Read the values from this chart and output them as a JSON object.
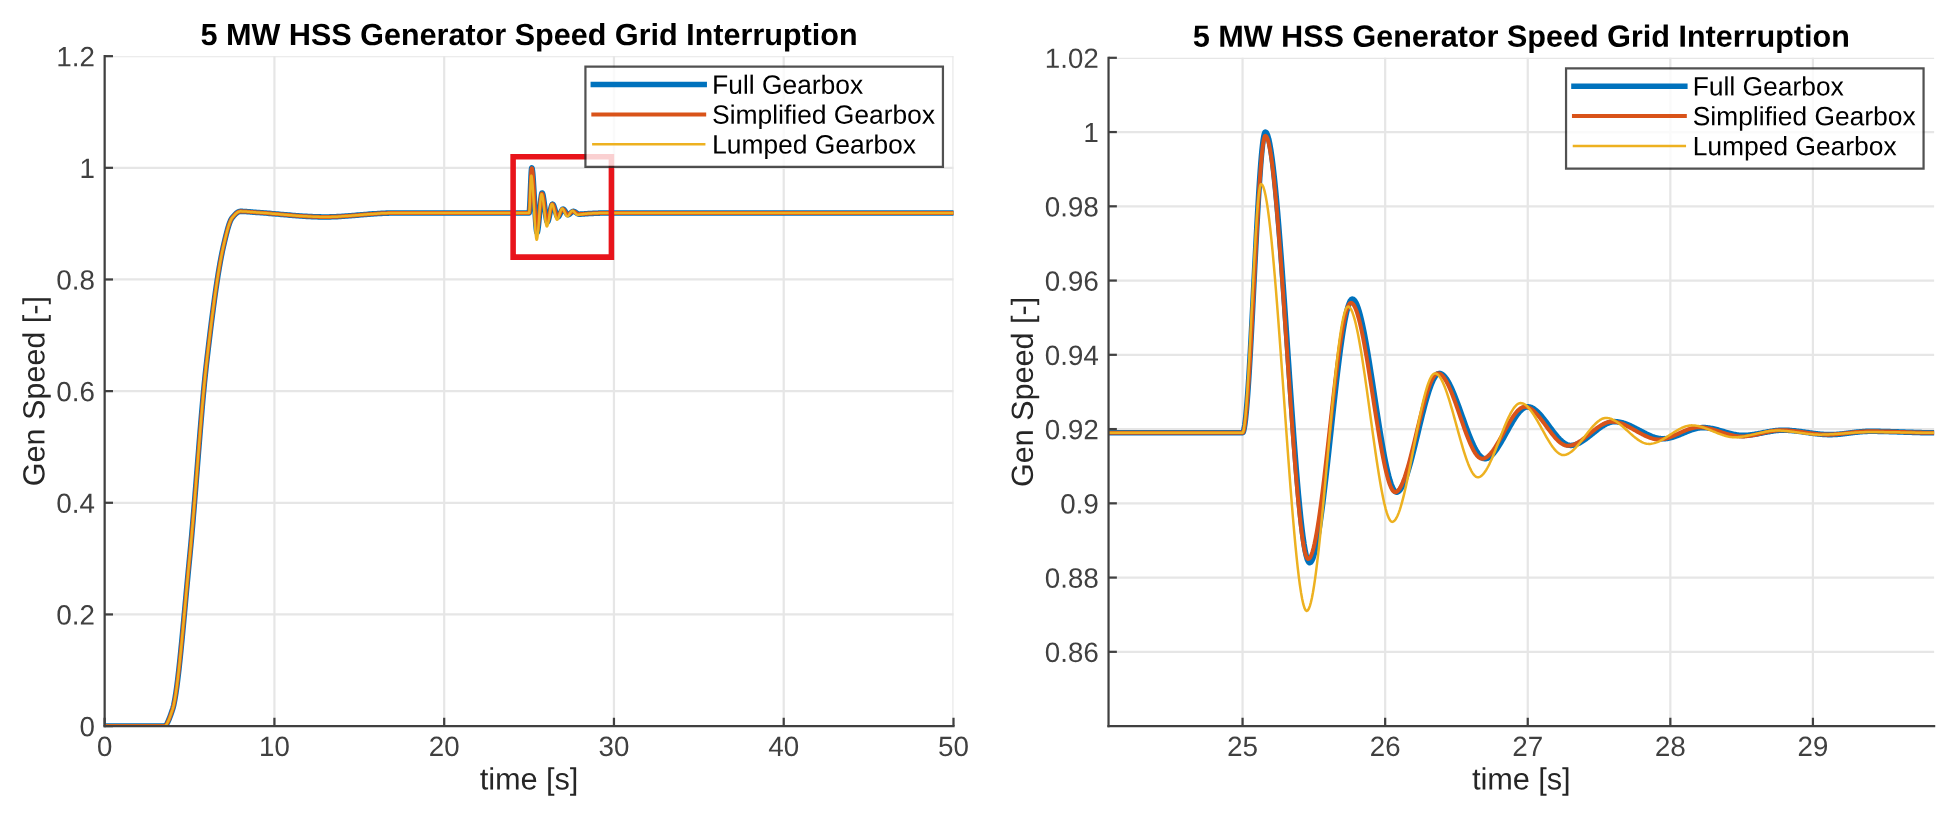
{
  "chart_data": [
    {
      "type": "line",
      "title": "5 MW HSS Generator Speed Grid Interruption",
      "xlabel": "time [s]",
      "ylabel": "Gen Speed [-]",
      "xlim": [
        0,
        50
      ],
      "ylim": [
        0,
        1.2
      ],
      "xticks": [
        0,
        10,
        20,
        30,
        40,
        50
      ],
      "yticks": [
        0,
        0.2,
        0.4,
        0.6,
        0.8,
        1,
        1.2
      ],
      "grid": true,
      "legend": "top right",
      "line_style": "solid",
      "series": [
        {
          "name": "Full Gearbox",
          "color": "#0072bd",
          "x": [
            0,
            3.5,
            4,
            5,
            6,
            7,
            7.5,
            8,
            9,
            13,
            17,
            25,
            25.16,
            25.47,
            25.77,
            26.08,
            26.38,
            26.7,
            27,
            27.3,
            27.61,
            27.95,
            28.5,
            29.4,
            30,
            50
          ],
          "values": [
            0,
            0,
            0.03,
            0.3,
            0.65,
            0.86,
            0.91,
            0.922,
            0.92,
            0.912,
            0.919,
            0.919,
            1.0,
            0.884,
            0.955,
            0.903,
            0.935,
            0.912,
            0.926,
            0.916,
            0.922,
            0.917,
            0.918,
            0.919,
            0.919,
            0.919
          ]
        },
        {
          "name": "Simplified Gearbox",
          "color": "#d95319",
          "x": [
            0,
            3.5,
            4,
            5,
            6,
            7,
            7.5,
            8,
            9,
            13,
            17,
            25,
            25.16,
            25.46,
            25.76,
            26.07,
            26.37,
            26.68,
            26.98,
            27.28,
            27.59,
            27.92,
            28.5,
            29.4,
            30,
            50
          ],
          "values": [
            0,
            0,
            0.03,
            0.3,
            0.65,
            0.86,
            0.91,
            0.922,
            0.92,
            0.912,
            0.919,
            0.919,
            0.999,
            0.885,
            0.954,
            0.903,
            0.935,
            0.912,
            0.926,
            0.916,
            0.922,
            0.917,
            0.918,
            0.919,
            0.919,
            0.919
          ]
        },
        {
          "name": "Lumped Gearbox",
          "color": "#edb120",
          "x": [
            0,
            3.5,
            4,
            5,
            6,
            7,
            7.5,
            8,
            9,
            13,
            17,
            25,
            25.13,
            25.45,
            25.74,
            26.05,
            26.35,
            26.65,
            26.95,
            27.25,
            27.55,
            27.85,
            28.45,
            29.4,
            30,
            50
          ],
          "values": [
            0,
            0,
            0.03,
            0.3,
            0.65,
            0.86,
            0.91,
            0.922,
            0.92,
            0.912,
            0.919,
            0.919,
            0.986,
            0.871,
            0.953,
            0.895,
            0.935,
            0.907,
            0.927,
            0.913,
            0.923,
            0.916,
            0.918,
            0.919,
            0.919,
            0.919
          ]
        }
      ]
    },
    {
      "type": "line",
      "title": "5 MW HSS Generator Speed Grid Interruption",
      "xlabel": "time [s]",
      "ylabel": "Gen Speed [-]",
      "xlim": [
        24.06,
        29.85
      ],
      "ylim": [
        0.84,
        1.02
      ],
      "xticks": [
        25,
        26,
        27,
        28,
        29
      ],
      "yticks": [
        0.86,
        0.88,
        0.9,
        0.92,
        0.94,
        0.96,
        0.98,
        1,
        1.02
      ],
      "grid": true,
      "legend": "top right",
      "line_style": "solid",
      "series": [
        {
          "name": "Full Gearbox",
          "color": "#0072bd",
          "x": [
            24.06,
            25,
            25.16,
            25.47,
            25.77,
            26.08,
            26.38,
            26.7,
            27.0,
            27.3,
            27.61,
            27.95,
            28.23,
            28.51,
            28.79,
            29.12,
            29.4,
            29.85
          ],
          "values": [
            0.919,
            0.919,
            1.0,
            0.884,
            0.955,
            0.903,
            0.935,
            0.912,
            0.926,
            0.9156,
            0.922,
            0.9174,
            0.9204,
            0.9183,
            0.9197,
            0.9185,
            0.9194,
            0.919
          ]
        },
        {
          "name": "Simplified Gearbox",
          "color": "#d95319",
          "x": [
            24.06,
            25,
            25.16,
            25.46,
            25.76,
            26.07,
            26.37,
            26.68,
            26.98,
            27.28,
            27.59,
            27.92,
            28.2,
            28.5,
            28.78,
            29.1,
            29.4,
            29.85
          ],
          "values": [
            0.919,
            0.919,
            0.999,
            0.885,
            0.954,
            0.903,
            0.935,
            0.912,
            0.926,
            0.9155,
            0.922,
            0.9172,
            0.9205,
            0.918,
            0.9197,
            0.9185,
            0.9194,
            0.919
          ]
        },
        {
          "name": "Lumped Gearbox",
          "color": "#edb120",
          "x": [
            24.06,
            25,
            25.13,
            25.45,
            25.74,
            26.05,
            26.35,
            26.65,
            26.95,
            27.25,
            27.55,
            27.85,
            28.15,
            28.45,
            28.75,
            29.05,
            29.4,
            29.85
          ],
          "values": [
            0.919,
            0.919,
            0.986,
            0.871,
            0.953,
            0.895,
            0.935,
            0.907,
            0.927,
            0.913,
            0.923,
            0.916,
            0.921,
            0.9178,
            0.9196,
            0.9185,
            0.9192,
            0.919
          ]
        }
      ]
    }
  ]
}
